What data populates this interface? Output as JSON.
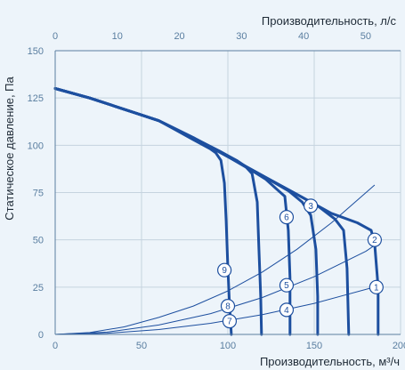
{
  "chart_data": {
    "type": "line",
    "title": "",
    "xlabel": "Производительность, м³/ч",
    "x2label": "Производительность, л/с",
    "ylabel": "Статическое давление, Па",
    "xlim": [
      0,
      200
    ],
    "x2lim": [
      0,
      55.6
    ],
    "ylim": [
      0,
      150
    ],
    "xticks": [
      0,
      50,
      100,
      150,
      200
    ],
    "x2ticks": [
      0,
      10,
      20,
      30,
      40,
      50
    ],
    "yticks": [
      0,
      25,
      50,
      75,
      100,
      125,
      150
    ],
    "grid": true,
    "colors": {
      "fan": "#1d4f9f",
      "system": "#1d4f9f",
      "grid": "#c5d3df",
      "axis": "#5a7ea0"
    },
    "series": [
      {
        "kind": "fan",
        "points": [
          [
            0,
            130
          ],
          [
            20,
            125
          ],
          [
            40,
            119
          ],
          [
            60,
            113
          ],
          [
            70,
            108
          ],
          [
            80,
            103
          ],
          [
            90,
            98
          ],
          [
            93,
            96
          ],
          [
            96,
            92
          ],
          [
            98,
            80
          ],
          [
            99,
            60
          ],
          [
            100,
            35
          ],
          [
            101,
            15
          ],
          [
            102,
            0
          ]
        ]
      },
      {
        "kind": "fan",
        "points": [
          [
            0,
            130
          ],
          [
            20,
            125
          ],
          [
            40,
            119
          ],
          [
            60,
            113
          ],
          [
            80,
            104
          ],
          [
            95,
            97
          ],
          [
            105,
            92
          ],
          [
            110,
            89
          ],
          [
            114,
            85
          ],
          [
            117,
            70
          ],
          [
            118,
            45
          ],
          [
            119,
            20
          ],
          [
            119.5,
            0
          ]
        ]
      },
      {
        "kind": "fan",
        "points": [
          [
            0,
            130
          ],
          [
            20,
            125
          ],
          [
            40,
            119
          ],
          [
            60,
            113
          ],
          [
            80,
            104
          ],
          [
            100,
            94
          ],
          [
            115,
            86
          ],
          [
            122,
            82
          ],
          [
            128,
            77
          ],
          [
            133,
            73
          ],
          [
            135,
            55
          ],
          [
            136,
            30
          ],
          [
            136,
            0
          ]
        ]
      },
      {
        "kind": "fan",
        "points": [
          [
            0,
            130
          ],
          [
            20,
            125
          ],
          [
            40,
            119
          ],
          [
            60,
            113
          ],
          [
            80,
            104
          ],
          [
            100,
            94
          ],
          [
            120,
            84
          ],
          [
            135,
            76
          ],
          [
            143,
            70
          ],
          [
            148,
            63
          ],
          [
            151,
            45
          ],
          [
            152,
            20
          ],
          [
            152,
            0
          ]
        ]
      },
      {
        "kind": "fan",
        "points": [
          [
            0,
            130
          ],
          [
            20,
            125
          ],
          [
            40,
            119
          ],
          [
            60,
            113
          ],
          [
            80,
            104
          ],
          [
            100,
            94
          ],
          [
            120,
            84
          ],
          [
            140,
            74
          ],
          [
            152,
            68
          ],
          [
            162,
            61
          ],
          [
            167,
            55
          ],
          [
            169,
            35
          ],
          [
            170,
            0
          ]
        ]
      },
      {
        "kind": "fan",
        "points": [
          [
            0,
            130
          ],
          [
            20,
            125
          ],
          [
            40,
            119
          ],
          [
            60,
            113
          ],
          [
            80,
            104
          ],
          [
            100,
            94
          ],
          [
            120,
            84
          ],
          [
            140,
            74
          ],
          [
            160,
            64
          ],
          [
            175,
            59
          ],
          [
            183,
            55
          ],
          [
            185,
            48
          ],
          [
            187,
            25
          ],
          [
            187,
            0
          ]
        ]
      },
      {
        "kind": "system",
        "points": [
          [
            0,
            0
          ],
          [
            20,
            1
          ],
          [
            40,
            4
          ],
          [
            60,
            9
          ],
          [
            80,
            15
          ],
          [
            100,
            23
          ],
          [
            120,
            33
          ],
          [
            140,
            45
          ],
          [
            160,
            59
          ],
          [
            185,
            79
          ]
        ]
      },
      {
        "kind": "system",
        "points": [
          [
            0,
            0
          ],
          [
            30,
            1.2
          ],
          [
            60,
            5
          ],
          [
            90,
            11
          ],
          [
            120,
            19.5
          ],
          [
            150,
            30.5
          ],
          [
            180,
            44
          ],
          [
            188,
            49
          ]
        ]
      },
      {
        "kind": "system",
        "points": [
          [
            0,
            0
          ],
          [
            30,
            0.6
          ],
          [
            60,
            2.6
          ],
          [
            90,
            5.9
          ],
          [
            120,
            10.5
          ],
          [
            150,
            16.4
          ],
          [
            188,
            25.8
          ]
        ]
      }
    ],
    "markers": [
      {
        "label": "1",
        "x": 186,
        "y": 25
      },
      {
        "label": "2",
        "x": 185,
        "y": 50
      },
      {
        "label": "3",
        "x": 148,
        "y": 68
      },
      {
        "label": "4",
        "x": 134,
        "y": 13
      },
      {
        "label": "5",
        "x": 134,
        "y": 26
      },
      {
        "label": "6",
        "x": 134,
        "y": 62
      },
      {
        "label": "7",
        "x": 101,
        "y": 7
      },
      {
        "label": "8",
        "x": 100,
        "y": 15
      },
      {
        "label": "9",
        "x": 98,
        "y": 34
      }
    ]
  }
}
